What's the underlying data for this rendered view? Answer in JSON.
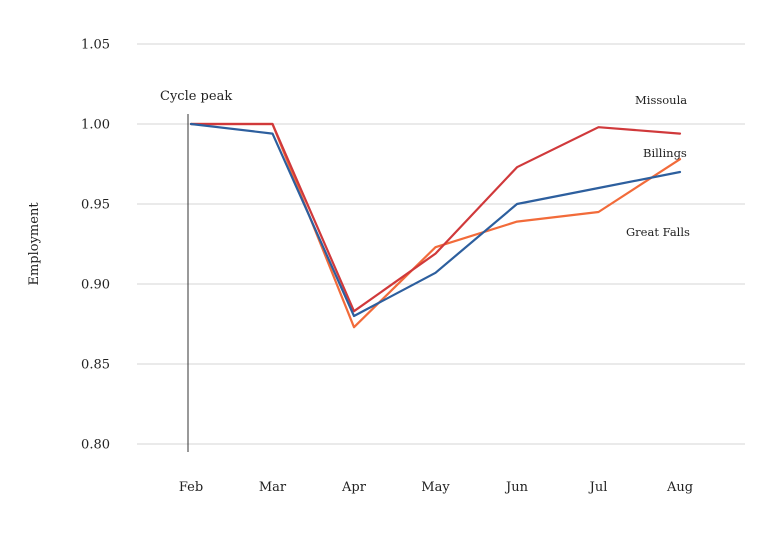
{
  "chart_data": {
    "type": "line",
    "title": "",
    "xlabel": "",
    "ylabel": "Employment",
    "categories": [
      "Feb",
      "Mar",
      "Apr",
      "May",
      "Jun",
      "Jul",
      "Aug"
    ],
    "ylim": [
      0.8,
      1.05
    ],
    "yticks": [
      "0.80",
      "0.85",
      "0.90",
      "0.95",
      "1.00",
      "1.05"
    ],
    "grid": true,
    "series": [
      {
        "name": "Missoula",
        "color": "#d0393b",
        "values": [
          1.0,
          1.0,
          0.883,
          0.919,
          0.973,
          0.998,
          0.994
        ]
      },
      {
        "name": "Billings",
        "color": "#2d5f9e",
        "values": [
          1.0,
          0.994,
          0.88,
          0.907,
          0.95,
          0.96,
          0.97
        ]
      },
      {
        "name": "Great Falls",
        "color": "#f26b3a",
        "values": [
          1.0,
          1.0,
          0.873,
          0.923,
          0.939,
          0.945,
          0.978
        ]
      }
    ],
    "annotations": [
      {
        "text": "Cycle peak",
        "category": "Feb"
      }
    ]
  }
}
